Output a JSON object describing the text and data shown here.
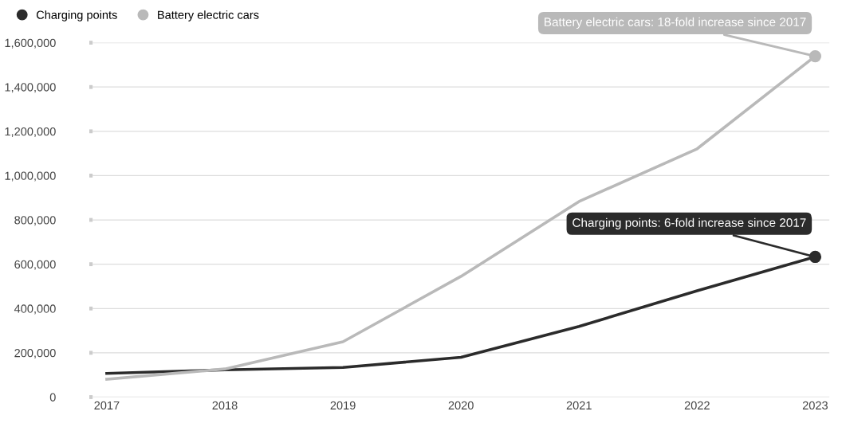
{
  "chart_data": {
    "type": "line",
    "categories": [
      "2017",
      "2018",
      "2019",
      "2020",
      "2021",
      "2022",
      "2023"
    ],
    "series": [
      {
        "name": "Charging points",
        "color": "#2b2b2b",
        "values": [
          107000,
          123000,
          134000,
          180000,
          319000,
          480000,
          633000
        ]
      },
      {
        "name": "Battery electric cars",
        "color": "#b9b9b9",
        "values": [
          81000,
          127000,
          250000,
          545000,
          883000,
          1121000,
          1539000
        ]
      }
    ],
    "ylim": [
      0,
      1600000
    ],
    "yticks": [
      {
        "value": 0,
        "label": "0"
      },
      {
        "value": 200000,
        "label": "200,000"
      },
      {
        "value": 400000,
        "label": "400,000"
      },
      {
        "value": 600000,
        "label": "600,000"
      },
      {
        "value": 800000,
        "label": "800,000"
      },
      {
        "value": 1000000,
        "label": "1,000,000"
      },
      {
        "value": 1200000,
        "label": "1,200,000"
      },
      {
        "value": 1400000,
        "label": "1,400,000"
      },
      {
        "value": 1600000,
        "label": "1,600,000"
      }
    ],
    "annotations": [
      {
        "text": "Battery electric cars: 18-fold increase since 2017",
        "x": "2023",
        "y": 1539000
      },
      {
        "text": "Charging points: 6-fold increase since 2017",
        "x": "2023",
        "y": 633000
      }
    ],
    "grid": "y",
    "legend": "top left",
    "marker": "none",
    "line_style": "solid"
  }
}
